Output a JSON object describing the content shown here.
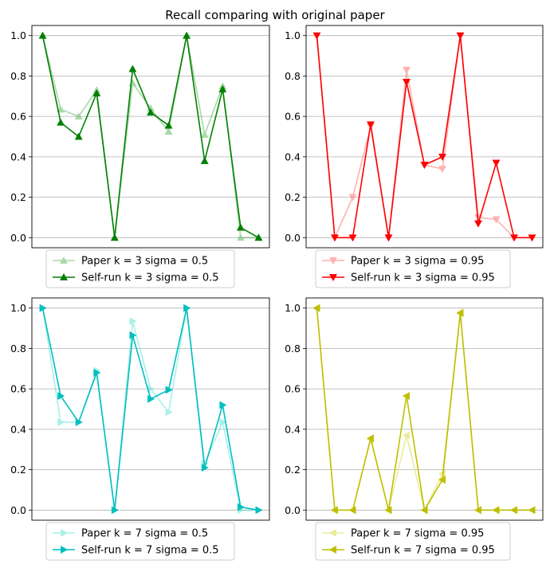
{
  "title": "Recall comparing with original paper",
  "chart_data": [
    {
      "type": "line",
      "ylim": [
        -0.05,
        1.05
      ],
      "yticks": [
        "0.0",
        "0.2",
        "0.4",
        "0.6",
        "0.8",
        "1.0"
      ],
      "grid": "y",
      "legend_placement": "below",
      "series": [
        {
          "name": "Paper k = 3 sigma = 0.5",
          "color": "#2ca02c",
          "alpha": 0.4,
          "marker": "triangle-up",
          "x": [
            0,
            1,
            2,
            3,
            4,
            5,
            6,
            7,
            8,
            9,
            10,
            11,
            12
          ],
          "y": [
            1.0,
            0.635,
            0.6,
            0.73,
            0.0,
            0.765,
            0.64,
            0.525,
            1.0,
            0.51,
            0.75,
            0.0,
            0.0
          ]
        },
        {
          "name": "Self-run k = 3 sigma = 0.5",
          "color": "#008000",
          "alpha": 1,
          "marker": "triangle-up",
          "x": [
            0,
            1,
            2,
            3,
            4,
            5,
            6,
            7,
            8,
            9,
            10,
            11,
            12
          ],
          "y": [
            1.0,
            0.57,
            0.5,
            0.715,
            0.0,
            0.835,
            0.62,
            0.555,
            1.0,
            0.38,
            0.735,
            0.05,
            0.0
          ]
        }
      ]
    },
    {
      "type": "line",
      "ylim": [
        -0.05,
        1.05
      ],
      "yticks": [
        "0.0",
        "0.2",
        "0.4",
        "0.6",
        "0.8",
        "1.0"
      ],
      "grid": "y",
      "legend_placement": "below",
      "series": [
        {
          "name": "Paper k = 3 sigma = 0.95",
          "color": "#ff6666",
          "alpha": 0.5,
          "marker": "triangle-down",
          "x": [
            0,
            1,
            2,
            3,
            4,
            5,
            6,
            7,
            8,
            9,
            10,
            11,
            12
          ],
          "y": [
            1.0,
            0.0,
            0.2,
            0.55,
            0.0,
            0.83,
            0.36,
            0.34,
            1.0,
            0.1,
            0.09,
            0.0,
            0.0
          ]
        },
        {
          "name": "Self-run k = 3 sigma = 0.95",
          "color": "#ff0000",
          "alpha": 1,
          "marker": "triangle-down",
          "x": [
            0,
            1,
            2,
            3,
            4,
            5,
            6,
            7,
            8,
            9,
            10,
            11,
            12
          ],
          "y": [
            1.0,
            0.0,
            0.0,
            0.56,
            0.0,
            0.77,
            0.36,
            0.4,
            1.0,
            0.07,
            0.37,
            0.0,
            0.0
          ]
        }
      ]
    },
    {
      "type": "line",
      "ylim": [
        -0.05,
        1.05
      ],
      "yticks": [
        "0.0",
        "0.2",
        "0.4",
        "0.6",
        "0.8",
        "1.0"
      ],
      "grid": "y",
      "legend_placement": "below",
      "series": [
        {
          "name": "Paper k = 7 sigma = 0.5",
          "color": "#40e0d0",
          "alpha": 0.45,
          "marker": "triangle-right",
          "x": [
            0,
            1,
            2,
            3,
            4,
            5,
            6,
            7,
            8,
            9,
            10,
            11,
            12
          ],
          "y": [
            1.0,
            0.435,
            0.435,
            0.69,
            0.0,
            0.935,
            0.6,
            0.485,
            1.0,
            0.23,
            0.435,
            0.0,
            0.0
          ]
        },
        {
          "name": "Self-run k = 7 sigma = 0.5",
          "color": "#00bfbf",
          "alpha": 1,
          "marker": "triangle-right",
          "x": [
            0,
            1,
            2,
            3,
            4,
            5,
            6,
            7,
            8,
            9,
            10,
            11,
            12
          ],
          "y": [
            1.0,
            0.565,
            0.435,
            0.68,
            0.0,
            0.865,
            0.55,
            0.595,
            1.0,
            0.21,
            0.52,
            0.015,
            0.0
          ]
        }
      ]
    },
    {
      "type": "line",
      "ylim": [
        -0.05,
        1.05
      ],
      "yticks": [
        "0.0",
        "0.2",
        "0.4",
        "0.6",
        "0.8",
        "1.0"
      ],
      "grid": "y",
      "legend_placement": "below",
      "series": [
        {
          "name": "Paper k = 7 sigma = 0.95",
          "color": "#d8d840",
          "alpha": 0.5,
          "marker": "triangle-left",
          "x": [
            0,
            1,
            2,
            3,
            4,
            5,
            6,
            7,
            8,
            9,
            10,
            11,
            12
          ],
          "y": [
            1.0,
            0.0,
            0.0,
            0.35,
            0.0,
            0.37,
            0.0,
            0.18,
            0.98,
            0.0,
            0.0,
            0.0,
            0.0
          ]
        },
        {
          "name": "Self-run k = 7 sigma = 0.95",
          "color": "#bfbf00",
          "alpha": 1,
          "marker": "triangle-left",
          "x": [
            0,
            1,
            2,
            3,
            4,
            5,
            6,
            7,
            8,
            9,
            10,
            11,
            12
          ],
          "y": [
            1.0,
            0.0,
            0.0,
            0.355,
            0.0,
            0.565,
            0.0,
            0.15,
            0.975,
            0.0,
            0.0,
            0.0,
            0.0
          ]
        }
      ]
    }
  ]
}
